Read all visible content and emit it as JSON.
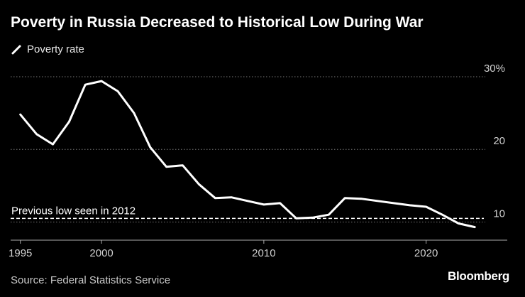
{
  "colors": {
    "background": "#000000",
    "line": "#ffffff",
    "grid": "#777777",
    "reference": "#ffffff",
    "axis": "#aaaaaa",
    "text": "#ffffff",
    "muted": "#c8c8c8"
  },
  "footer": {
    "source": "Source: Federal Statistics Service",
    "brand": "Bloomberg"
  },
  "chart_data": {
    "type": "line",
    "title": "Poverty in Russia Decreased to Historical Low During War",
    "xlabel": "",
    "ylabel": "",
    "xlim": [
      1994.4,
      2025
    ],
    "ylim": [
      7.5,
      30
    ],
    "x_ticks": [
      1995,
      2000,
      2010,
      2020
    ],
    "y_ticks": [
      {
        "value": 30,
        "label": "30%"
      },
      {
        "value": 20,
        "label": "20"
      },
      {
        "value": 10,
        "label": "10"
      }
    ],
    "grid": true,
    "legend": {
      "position": "top-left",
      "entries": [
        "Poverty rate"
      ]
    },
    "series": [
      {
        "name": "Poverty rate",
        "x": [
          1995,
          1996,
          1997,
          1998,
          1999,
          2000,
          2001,
          2002,
          2003,
          2004,
          2005,
          2006,
          2007,
          2008,
          2009,
          2010,
          2011,
          2012,
          2013,
          2014,
          2015,
          2016,
          2017,
          2018,
          2019,
          2020,
          2021,
          2022,
          2023
        ],
        "values": [
          24.8,
          22.1,
          20.7,
          23.8,
          28.9,
          29.4,
          28.0,
          25.0,
          20.3,
          17.6,
          17.8,
          15.2,
          13.3,
          13.4,
          12.9,
          12.4,
          12.6,
          10.5,
          10.6,
          11.0,
          13.3,
          13.2,
          12.9,
          12.6,
          12.3,
          12.1,
          11.0,
          9.8,
          9.3
        ]
      }
    ],
    "reference_line": {
      "value": 10.5,
      "label": "Previous low seen in 2012"
    }
  }
}
